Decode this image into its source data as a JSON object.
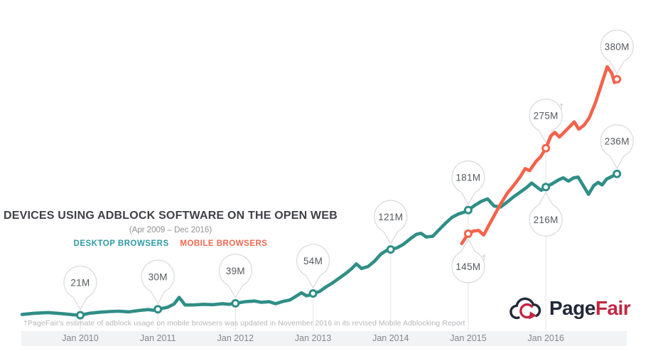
{
  "header": {
    "title": "DEVICES USING ADBLOCK SOFTWARE ON THE OPEN WEB",
    "subtitle": "(Apr 2009 – Dec 2016)"
  },
  "legend": {
    "desktop": "DESKTOP BROWSERS",
    "mobile": "MOBILE BROWSERS"
  },
  "footnote": {
    "text": "†PageFair's estimate of adblock usage on mobile browsers was updated in November 2016 in its revised Mobile Adblocking Report"
  },
  "logo": {
    "name": "PageFair",
    "part1": "Page",
    "part2": "Fair",
    "icon": "cloud-refresh-icon"
  },
  "colors": {
    "desktop_line": "#2f8e86",
    "mobile_line": "#f4624b",
    "legend_desktop": "#2f99a3",
    "legend_mobile": "#f1684f",
    "title_text": "#3f4046",
    "subtitle_text": "#8f9094",
    "footnote_text": "#b6b7bb",
    "axis_band": "#f2f3f5",
    "axis_text": "#84868b",
    "grid": "#e4e4e6",
    "bubble_border": "#d8d9db",
    "bubble_fill": "#ffffff",
    "bubble_text": "#55585e",
    "dagger": "#c3c4c7",
    "logo_navy": "#232838",
    "logo_red": "#c22742"
  },
  "chart_data": {
    "type": "line",
    "title": "DEVICES USING ADBLOCK SOFTWARE ON THE OPEN WEB",
    "subtitle": "(Apr 2009 - Dec 2016)",
    "y_unit": "millions of devices",
    "ylim": [
      0,
      400
    ],
    "x_unit": "months since Apr 2009",
    "grid": "vertical ticks only",
    "legend_position": "under title",
    "x_ticks": [
      {
        "label": "Jan 2010",
        "month": 9
      },
      {
        "label": "Jan 2011",
        "month": 21
      },
      {
        "label": "Jan 2012",
        "month": 33
      },
      {
        "label": "Jan 2013",
        "month": 45
      },
      {
        "label": "Jan 2014",
        "month": 57
      },
      {
        "label": "Jan 2015",
        "month": 69
      },
      {
        "label": "Jan 2016",
        "month": 81
      }
    ],
    "series": [
      {
        "name": "Desktop browsers",
        "color": "#2f8e86",
        "points": [
          [
            0,
            22
          ],
          [
            2,
            24
          ],
          [
            4,
            25
          ],
          [
            6,
            23.5
          ],
          [
            8,
            21.5
          ],
          [
            9,
            21
          ],
          [
            10.5,
            24
          ],
          [
            12,
            25.5
          ],
          [
            13.5,
            26.5
          ],
          [
            15,
            27
          ],
          [
            16.5,
            26
          ],
          [
            18,
            28
          ],
          [
            19.5,
            29.5
          ],
          [
            20.3,
            28.5
          ],
          [
            21,
            30
          ],
          [
            22.5,
            33
          ],
          [
            23.5,
            38
          ],
          [
            24.3,
            48
          ],
          [
            25.2,
            36.5
          ],
          [
            26.5,
            36.5
          ],
          [
            28,
            37.5
          ],
          [
            29.5,
            37
          ],
          [
            31,
            38.5
          ],
          [
            32,
            37.5
          ],
          [
            33,
            39
          ],
          [
            34.5,
            41.5
          ],
          [
            36,
            42.5
          ],
          [
            37,
            40.5
          ],
          [
            38.2,
            41.5
          ],
          [
            39.2,
            38.5
          ],
          [
            40.4,
            42
          ],
          [
            41.4,
            44
          ],
          [
            42.4,
            50
          ],
          [
            43.2,
            55
          ],
          [
            44,
            50.5
          ],
          [
            44.6,
            52
          ],
          [
            45,
            54
          ],
          [
            46,
            57
          ],
          [
            47,
            64
          ],
          [
            48,
            70
          ],
          [
            49,
            77
          ],
          [
            50,
            84
          ],
          [
            51,
            92
          ],
          [
            51.7,
            99
          ],
          [
            52.5,
            92
          ],
          [
            53.5,
            95
          ],
          [
            54.5,
            103
          ],
          [
            55.5,
            114
          ],
          [
            56.3,
            119
          ],
          [
            57,
            121
          ],
          [
            58,
            123.5
          ],
          [
            59,
            129
          ],
          [
            60,
            137
          ],
          [
            61,
            144
          ],
          [
            61.7,
            145.5
          ],
          [
            62.5,
            140
          ],
          [
            63.5,
            141
          ],
          [
            64.5,
            151
          ],
          [
            65.5,
            161
          ],
          [
            66.5,
            170
          ],
          [
            67.5,
            175
          ],
          [
            68.3,
            177.5
          ],
          [
            69,
            181
          ],
          [
            70,
            188
          ],
          [
            71,
            194
          ],
          [
            72,
            198
          ],
          [
            73,
            187
          ],
          [
            74,
            185.5
          ],
          [
            75,
            193
          ],
          [
            76,
            201
          ],
          [
            77,
            208
          ],
          [
            78,
            215
          ],
          [
            78.8,
            222
          ],
          [
            79.6,
            216
          ],
          [
            80.3,
            211
          ],
          [
            81,
            216
          ],
          [
            82,
            221
          ],
          [
            83,
            227
          ],
          [
            83.7,
            230
          ],
          [
            84.5,
            225
          ],
          [
            85.3,
            230
          ],
          [
            86,
            231
          ],
          [
            86.8,
            218
          ],
          [
            87.6,
            205
          ],
          [
            88.4,
            218
          ],
          [
            89.1,
            223
          ],
          [
            89.7,
            219
          ],
          [
            90.4,
            228
          ],
          [
            91.2,
            232
          ],
          [
            92,
            236
          ]
        ]
      },
      {
        "name": "Mobile browsers",
        "color": "#f4624b",
        "points": [
          [
            68,
            130
          ],
          [
            69,
            145
          ],
          [
            69.8,
            149
          ],
          [
            70.6,
            150
          ],
          [
            71.4,
            143
          ],
          [
            72.2,
            158
          ],
          [
            73.1,
            174
          ],
          [
            74,
            190
          ],
          [
            75,
            206
          ],
          [
            76,
            218
          ],
          [
            77,
            231
          ],
          [
            77.8,
            244
          ],
          [
            78.5,
            241
          ],
          [
            79.5,
            255
          ],
          [
            80.2,
            262
          ],
          [
            81,
            275
          ],
          [
            81.8,
            294
          ],
          [
            82.4,
            299
          ],
          [
            83.1,
            292
          ],
          [
            83.9,
            300
          ],
          [
            84.7,
            308
          ],
          [
            85.4,
            315
          ],
          [
            86.1,
            304
          ],
          [
            86.9,
            310
          ],
          [
            87.7,
            321
          ],
          [
            88.7,
            345
          ],
          [
            89.7,
            375
          ],
          [
            90.5,
            399
          ],
          [
            91.2,
            389
          ],
          [
            91.6,
            375
          ],
          [
            92,
            380
          ]
        ]
      }
    ],
    "annotations": [
      {
        "label": "21M",
        "series": 0,
        "month": 9,
        "value": 21,
        "direction": "down",
        "dagger": false
      },
      {
        "label": "30M",
        "series": 0,
        "month": 21,
        "value": 30,
        "direction": "down",
        "dagger": false
      },
      {
        "label": "39M",
        "series": 0,
        "month": 33,
        "value": 39,
        "direction": "down",
        "dagger": false
      },
      {
        "label": "54M",
        "series": 0,
        "month": 45,
        "value": 54,
        "direction": "down",
        "dagger": false
      },
      {
        "label": "121M",
        "series": 0,
        "month": 57,
        "value": 121,
        "direction": "down",
        "dagger": false
      },
      {
        "label": "181M",
        "series": 0,
        "month": 69,
        "value": 181,
        "direction": "down",
        "dagger": false
      },
      {
        "label": "145M",
        "series": 1,
        "month": 69,
        "value": 145,
        "direction": "up",
        "dagger": true
      },
      {
        "label": "275M",
        "series": 1,
        "month": 81,
        "value": 275,
        "direction": "down",
        "dagger": true
      },
      {
        "label": "216M",
        "series": 0,
        "month": 81,
        "value": 216,
        "direction": "up",
        "dagger": false
      },
      {
        "label": "380M",
        "series": 1,
        "month": 92,
        "value": 380,
        "direction": "down",
        "dagger": false
      },
      {
        "label": "236M",
        "series": 0,
        "month": 92,
        "value": 236,
        "direction": "down",
        "dagger": false
      }
    ]
  }
}
